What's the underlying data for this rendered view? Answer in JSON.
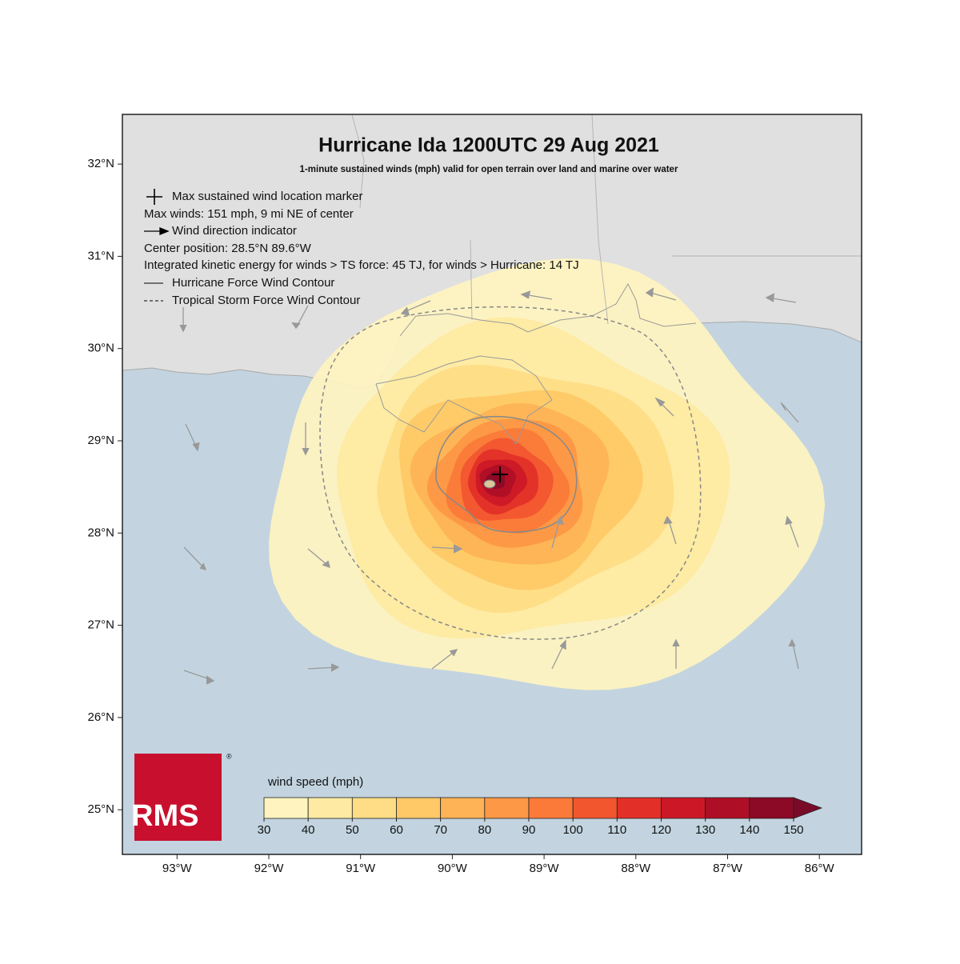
{
  "title": "Hurricane Ida 1200UTC 29 Aug 2021",
  "subtitle": "1-minute sustained winds (mph) valid for open terrain over land and marine over water",
  "legend": [
    "Max sustained wind location marker",
    "Max winds: 151 mph, 9 mi NE of center",
    "Wind direction indicator",
    "Center position: 28.5°N 89.6°W",
    "Integrated kinetic energy for winds > TS force: 45 TJ, for winds > Hurricane: 14 TJ",
    "Hurricane Force Wind Contour",
    "Tropical Storm Force Wind Contour"
  ],
  "lat_ticks": [
    {
      "value": 32,
      "label": "32°N"
    },
    {
      "value": 31,
      "label": "31°N"
    },
    {
      "value": 30,
      "label": "30°N"
    },
    {
      "value": 29,
      "label": "29°N"
    },
    {
      "value": 28,
      "label": "28°N"
    },
    {
      "value": 27,
      "label": "27°N"
    },
    {
      "value": 26,
      "label": "26°N"
    },
    {
      "value": 25,
      "label": "25°N"
    }
  ],
  "lon_ticks": [
    {
      "value": -93,
      "label": "93°W"
    },
    {
      "value": -92,
      "label": "92°W"
    },
    {
      "value": -91,
      "label": "91°W"
    },
    {
      "value": -90,
      "label": "90°W"
    },
    {
      "value": -89,
      "label": "89°W"
    },
    {
      "value": -88,
      "label": "88°W"
    },
    {
      "value": -87,
      "label": "87°W"
    },
    {
      "value": -86,
      "label": "86°W"
    }
  ],
  "colorbar": {
    "label": "wind speed (mph)",
    "ticks": [
      30,
      40,
      50,
      60,
      70,
      80,
      90,
      100,
      110,
      120,
      130,
      140,
      150
    ],
    "colors": [
      "#fff4bf",
      "#feeaa2",
      "#fedd86",
      "#fec966",
      "#fdb356",
      "#fd9846",
      "#fb7a39",
      "#f2562f",
      "#e23028",
      "#cc1826",
      "#ae0f26",
      "#8c0a26"
    ],
    "extend_color": "#7a0a2a"
  },
  "logo": {
    "text": "RMS",
    "mark": "®"
  }
}
